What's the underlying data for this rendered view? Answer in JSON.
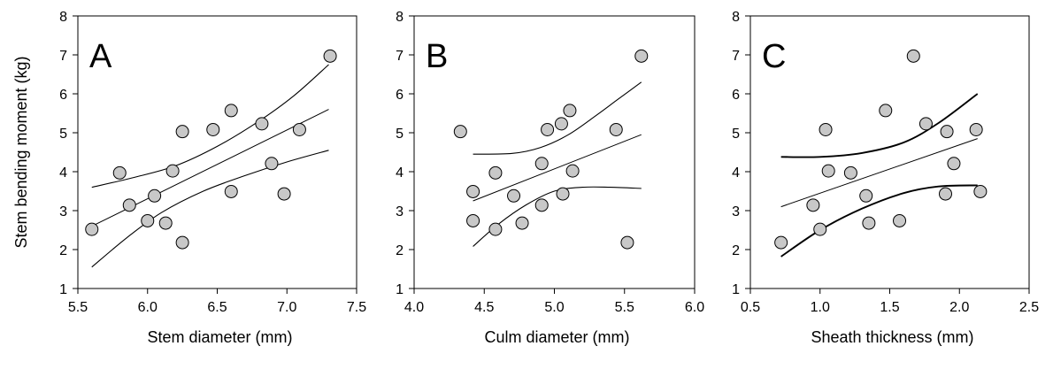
{
  "figure": {
    "ylabel": "Stem bending moment (kg)"
  },
  "chart_data": [
    {
      "type": "scatter",
      "panel_label": "A",
      "xlabel": "Stem diameter (mm)",
      "ylabel": "Stem bending moment (kg)",
      "xlim": [
        5.5,
        7.5
      ],
      "ylim": [
        1,
        8
      ],
      "x_ticks": [
        "5.5",
        "6.0",
        "6.5",
        "7.0",
        "7.5"
      ],
      "y_ticks": [
        "1",
        "2",
        "3",
        "4",
        "5",
        "6",
        "7",
        "8"
      ],
      "grid": false,
      "points": [
        {
          "x": 5.6,
          "y": 2.52
        },
        {
          "x": 5.8,
          "y": 3.97
        },
        {
          "x": 5.87,
          "y": 3.14
        },
        {
          "x": 6.0,
          "y": 2.74
        },
        {
          "x": 6.05,
          "y": 3.38
        },
        {
          "x": 6.13,
          "y": 2.68
        },
        {
          "x": 6.18,
          "y": 4.02
        },
        {
          "x": 6.25,
          "y": 5.03
        },
        {
          "x": 6.25,
          "y": 2.18
        },
        {
          "x": 6.47,
          "y": 5.08
        },
        {
          "x": 6.6,
          "y": 5.57
        },
        {
          "x": 6.6,
          "y": 3.49
        },
        {
          "x": 6.82,
          "y": 5.23
        },
        {
          "x": 6.89,
          "y": 4.21
        },
        {
          "x": 6.98,
          "y": 3.43
        },
        {
          "x": 7.09,
          "y": 5.08
        },
        {
          "x": 7.31,
          "y": 6.97
        }
      ],
      "fit": [
        {
          "x": 5.6,
          "y": 2.6
        },
        {
          "x": 7.3,
          "y": 5.6
        }
      ],
      "ci_upper": [
        {
          "x": 5.6,
          "y": 3.6
        },
        {
          "x": 5.9,
          "y": 3.85
        },
        {
          "x": 6.2,
          "y": 4.15
        },
        {
          "x": 6.5,
          "y": 4.65
        },
        {
          "x": 6.8,
          "y": 5.3
        },
        {
          "x": 7.05,
          "y": 5.95
        },
        {
          "x": 7.3,
          "y": 6.75
        }
      ],
      "ci_lower": [
        {
          "x": 5.6,
          "y": 1.55
        },
        {
          "x": 5.85,
          "y": 2.3
        },
        {
          "x": 6.1,
          "y": 2.95
        },
        {
          "x": 6.4,
          "y": 3.5
        },
        {
          "x": 6.7,
          "y": 3.9
        },
        {
          "x": 7.0,
          "y": 4.25
        },
        {
          "x": 7.3,
          "y": 4.55
        }
      ]
    },
    {
      "type": "scatter",
      "panel_label": "B",
      "xlabel": "Culm diameter (mm)",
      "ylabel": "",
      "xlim": [
        4.0,
        6.0
      ],
      "ylim": [
        1,
        8
      ],
      "x_ticks": [
        "4.0",
        "4.5",
        "5.0",
        "5.5",
        "6.0"
      ],
      "y_ticks": [
        "1",
        "2",
        "3",
        "4",
        "5",
        "6",
        "7",
        "8"
      ],
      "grid": false,
      "points": [
        {
          "x": 4.33,
          "y": 5.03
        },
        {
          "x": 4.42,
          "y": 3.49
        },
        {
          "x": 4.42,
          "y": 2.74
        },
        {
          "x": 4.58,
          "y": 3.97
        },
        {
          "x": 4.58,
          "y": 2.52
        },
        {
          "x": 4.71,
          "y": 3.38
        },
        {
          "x": 4.77,
          "y": 2.68
        },
        {
          "x": 4.91,
          "y": 4.21
        },
        {
          "x": 4.91,
          "y": 3.14
        },
        {
          "x": 4.95,
          "y": 5.08
        },
        {
          "x": 5.05,
          "y": 5.23
        },
        {
          "x": 5.06,
          "y": 3.43
        },
        {
          "x": 5.11,
          "y": 5.57
        },
        {
          "x": 5.13,
          "y": 4.02
        },
        {
          "x": 5.44,
          "y": 5.08
        },
        {
          "x": 5.52,
          "y": 2.18
        },
        {
          "x": 5.62,
          "y": 6.97
        }
      ],
      "fit": [
        {
          "x": 4.42,
          "y": 3.25
        },
        {
          "x": 5.62,
          "y": 4.95
        }
      ],
      "ci_upper": [
        {
          "x": 4.42,
          "y": 4.45
        },
        {
          "x": 4.7,
          "y": 4.47
        },
        {
          "x": 4.9,
          "y": 4.62
        },
        {
          "x": 5.1,
          "y": 4.95
        },
        {
          "x": 5.3,
          "y": 5.45
        },
        {
          "x": 5.45,
          "y": 5.85
        },
        {
          "x": 5.62,
          "y": 6.3
        }
      ],
      "ci_lower": [
        {
          "x": 4.42,
          "y": 2.08
        },
        {
          "x": 4.6,
          "y": 2.65
        },
        {
          "x": 4.8,
          "y": 3.15
        },
        {
          "x": 5.0,
          "y": 3.5
        },
        {
          "x": 5.2,
          "y": 3.6
        },
        {
          "x": 5.4,
          "y": 3.6
        },
        {
          "x": 5.62,
          "y": 3.57
        }
      ]
    },
    {
      "type": "scatter",
      "panel_label": "C",
      "xlabel": "Sheath thickness (mm)",
      "ylabel": "",
      "xlim": [
        0.5,
        2.5
      ],
      "ylim": [
        1,
        8
      ],
      "x_ticks": [
        "0.5",
        "1.0",
        "1.5",
        "2.0",
        "2.5"
      ],
      "y_ticks": [
        "1",
        "2",
        "3",
        "4",
        "5",
        "6",
        "7",
        "8"
      ],
      "grid": false,
      "points": [
        {
          "x": 0.72,
          "y": 2.18
        },
        {
          "x": 0.95,
          "y": 3.14
        },
        {
          "x": 1.0,
          "y": 2.52
        },
        {
          "x": 1.04,
          "y": 5.08
        },
        {
          "x": 1.06,
          "y": 4.02
        },
        {
          "x": 1.22,
          "y": 3.97
        },
        {
          "x": 1.33,
          "y": 3.38
        },
        {
          "x": 1.35,
          "y": 2.68
        },
        {
          "x": 1.47,
          "y": 5.57
        },
        {
          "x": 1.57,
          "y": 2.74
        },
        {
          "x": 1.67,
          "y": 6.97
        },
        {
          "x": 1.76,
          "y": 5.23
        },
        {
          "x": 1.9,
          "y": 3.43
        },
        {
          "x": 1.91,
          "y": 5.03
        },
        {
          "x": 1.96,
          "y": 4.21
        },
        {
          "x": 2.12,
          "y": 5.08
        },
        {
          "x": 2.15,
          "y": 3.49
        }
      ],
      "fit": [
        {
          "x": 0.72,
          "y": 3.1
        },
        {
          "x": 2.13,
          "y": 4.85
        }
      ],
      "ci_upper": [
        {
          "x": 0.72,
          "y": 4.38
        },
        {
          "x": 1.0,
          "y": 4.38
        },
        {
          "x": 1.3,
          "y": 4.48
        },
        {
          "x": 1.6,
          "y": 4.75
        },
        {
          "x": 1.85,
          "y": 5.25
        },
        {
          "x": 2.13,
          "y": 6.0
        }
      ],
      "ci_lower": [
        {
          "x": 0.72,
          "y": 1.82
        },
        {
          "x": 1.0,
          "y": 2.5
        },
        {
          "x": 1.3,
          "y": 3.05
        },
        {
          "x": 1.6,
          "y": 3.45
        },
        {
          "x": 1.85,
          "y": 3.62
        },
        {
          "x": 2.13,
          "y": 3.65
        }
      ]
    }
  ]
}
